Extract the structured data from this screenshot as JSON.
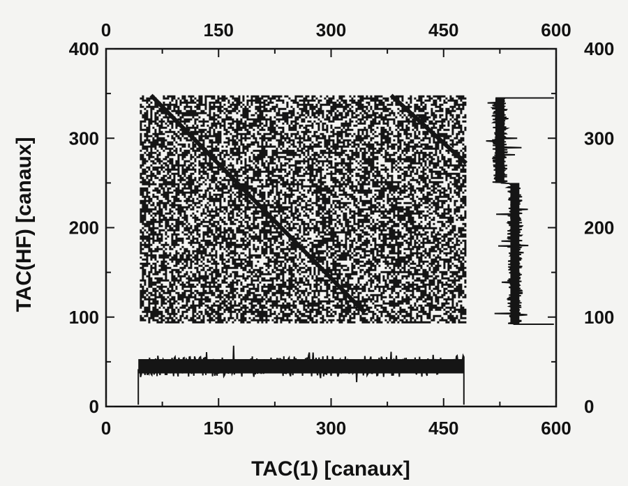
{
  "chart_data": {
    "type": "heatmap",
    "title": "",
    "xlabel": "TAC(1)  [canaux]",
    "ylabel": "TAC(HF)  [canaux]",
    "xlim": [
      0,
      600
    ],
    "ylim": [
      0,
      400
    ],
    "x_ticks": [
      "0",
      "150",
      "300",
      "450",
      "600"
    ],
    "y_ticks": [
      "0",
      "100",
      "200",
      "300",
      "400"
    ],
    "x_ticks_top": [
      "0",
      "150",
      "300",
      "450",
      "600"
    ],
    "y_ticks_right": [
      "0",
      "100",
      "200",
      "300",
      "400"
    ],
    "grid": false,
    "matrix": {
      "x_range": [
        45,
        480
      ],
      "y_range": [
        95,
        348
      ],
      "fill": "dense random coincidences"
    },
    "diagonal_bands": [
      {
        "x": [
          60,
          345
        ],
        "y": [
          348,
          105
        ]
      },
      {
        "x": [
          380,
          480
        ],
        "y": [
          348,
          272
        ]
      }
    ],
    "x_projection": {
      "x_range": [
        43,
        477
      ],
      "y_base": 2,
      "level_mean": 45,
      "level_noise": 12
    },
    "y_projection": {
      "y_range": [
        92,
        345
      ],
      "x_base": 597,
      "x_levels": [
        {
          "y_from": 92,
          "y_to": 250,
          "x": 545
        },
        {
          "y_from": 250,
          "y_to": 345,
          "x": 525
        }
      ]
    },
    "colors": {
      "ink": "#151515",
      "paper": "#f4f4f2"
    }
  }
}
